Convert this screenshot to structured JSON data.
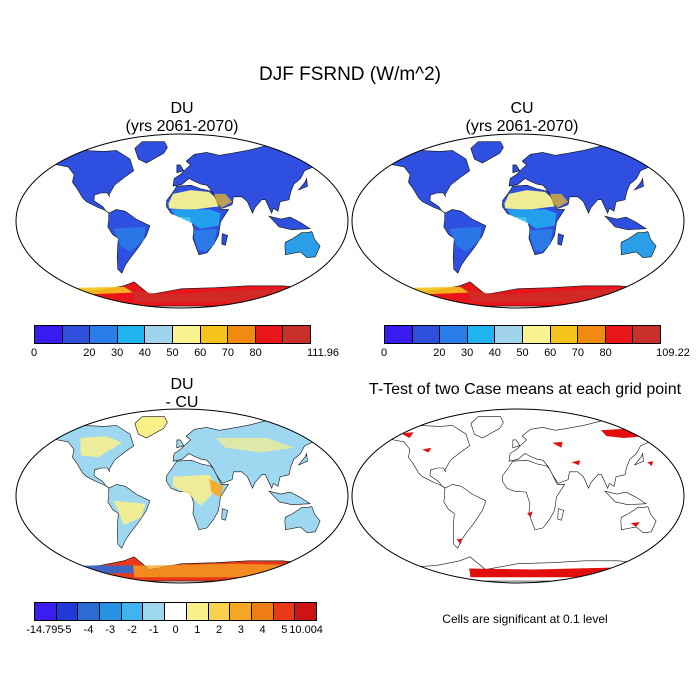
{
  "title": "DJF FSRND (W/m^2)",
  "panels": [
    {
      "title_line1": "DU",
      "title_line2": "(yrs 2061-2070)",
      "colorbar": {
        "colors": [
          "#3a1bef",
          "#2e4fdb",
          "#2a7de8",
          "#1fb4f0",
          "#9fd4ec",
          "#faf490",
          "#f5c31b",
          "#f08a10",
          "#e8161a",
          "#c9302c"
        ],
        "labels": [
          "0",
          "",
          "20",
          "30",
          "40",
          "50",
          "60",
          "70",
          "80",
          "111.96"
        ]
      }
    },
    {
      "title_line1": "CU",
      "title_line2": "(yrs 2061-2070)",
      "colorbar": {
        "colors": [
          "#3a1bef",
          "#2e4fdb",
          "#2a7de8",
          "#1fb4f0",
          "#9fd4ec",
          "#faf490",
          "#f5c31b",
          "#f08a10",
          "#e8161a",
          "#c9302c"
        ],
        "labels": [
          "0",
          "",
          "20",
          "30",
          "40",
          "50",
          "60",
          "70",
          "80",
          "109.22"
        ]
      }
    },
    {
      "title_line1": "DU",
      "title_line2": "- CU",
      "colorbar": {
        "colors": [
          "#3b1df0",
          "#2239d8",
          "#2c6ad6",
          "#2892e4",
          "#3fb4ee",
          "#9ed7f0",
          "#ffffff",
          "#faf08a",
          "#f7d24a",
          "#f5a623",
          "#ef7d15",
          "#e8391b",
          "#cc1414"
        ],
        "labels": [
          "-14.795",
          "-5",
          "-4",
          "-3",
          "-2",
          "-1",
          "0",
          "1",
          "2",
          "3",
          "4",
          "5",
          "10.004"
        ]
      }
    },
    {
      "title_line1": "T-Test of two Case means at each grid point",
      "footnote": "Cells are significant at 0.1 level"
    }
  ],
  "map_fills": {
    "mean_fields": {
      "ocean": "#ffffff",
      "land": "#2f4fe0",
      "africa_sahara": "#faf490",
      "africa_central": "#2a7de8",
      "australia": "#2a9fe8",
      "antarctica": "#e8161a"
    },
    "difference": {
      "land": "#9ed7f0",
      "warm": "#faf08a",
      "hot": "#f5a623",
      "antarctica_pos": "#e8391b",
      "antarctica_neg": "#2c6ad6"
    },
    "significance": {
      "land": "#ffffff",
      "significant_cells": "#e00000"
    }
  }
}
